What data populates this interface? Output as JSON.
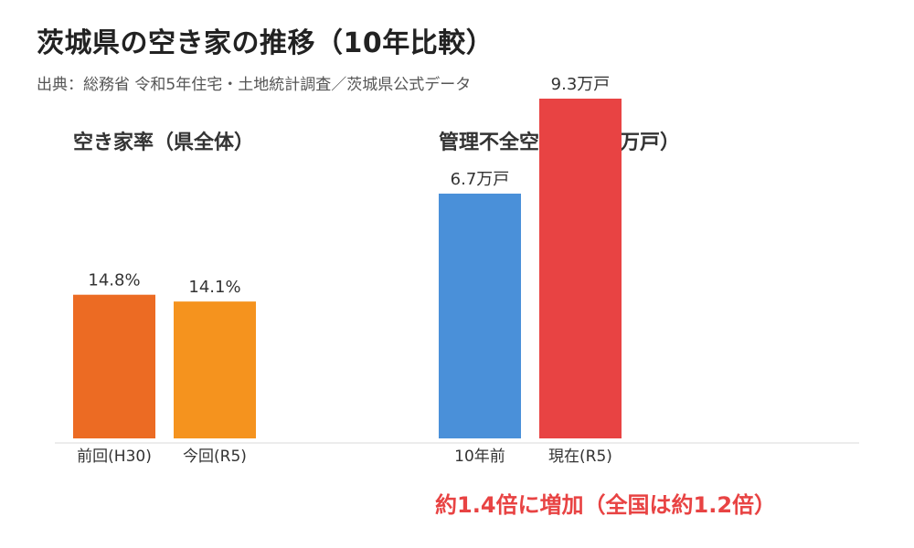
{
  "title": "茨城県の空き家の推移（10年比較）",
  "source": "出典：総務省 令和5年住宅・土地統計調査／茨城県公式データ",
  "note": "約1.4倍に増加（全国は約1.2倍）",
  "chart_data": [
    {
      "type": "bar",
      "title": "空き家率（県全体）",
      "categories": [
        "前回(H30)",
        "今回(R5)"
      ],
      "values": [
        14.8,
        14.1
      ],
      "value_labels": [
        "14.8%",
        "14.1%"
      ],
      "colors": [
        "#ec6b23",
        "#f5931e"
      ],
      "ylim": [
        0,
        35
      ],
      "grid": false,
      "legend": "none"
    },
    {
      "type": "bar",
      "title": "管理不全空き家数（万戸）",
      "categories": [
        "10年前",
        "現在(R5)"
      ],
      "values": [
        6.7,
        9.3
      ],
      "value_labels": [
        "6.7万戸",
        "9.3万戸"
      ],
      "colors": [
        "#4a90d9",
        "#e84343"
      ],
      "ylim": [
        0,
        9.3
      ],
      "grid": false,
      "legend": "none"
    }
  ]
}
